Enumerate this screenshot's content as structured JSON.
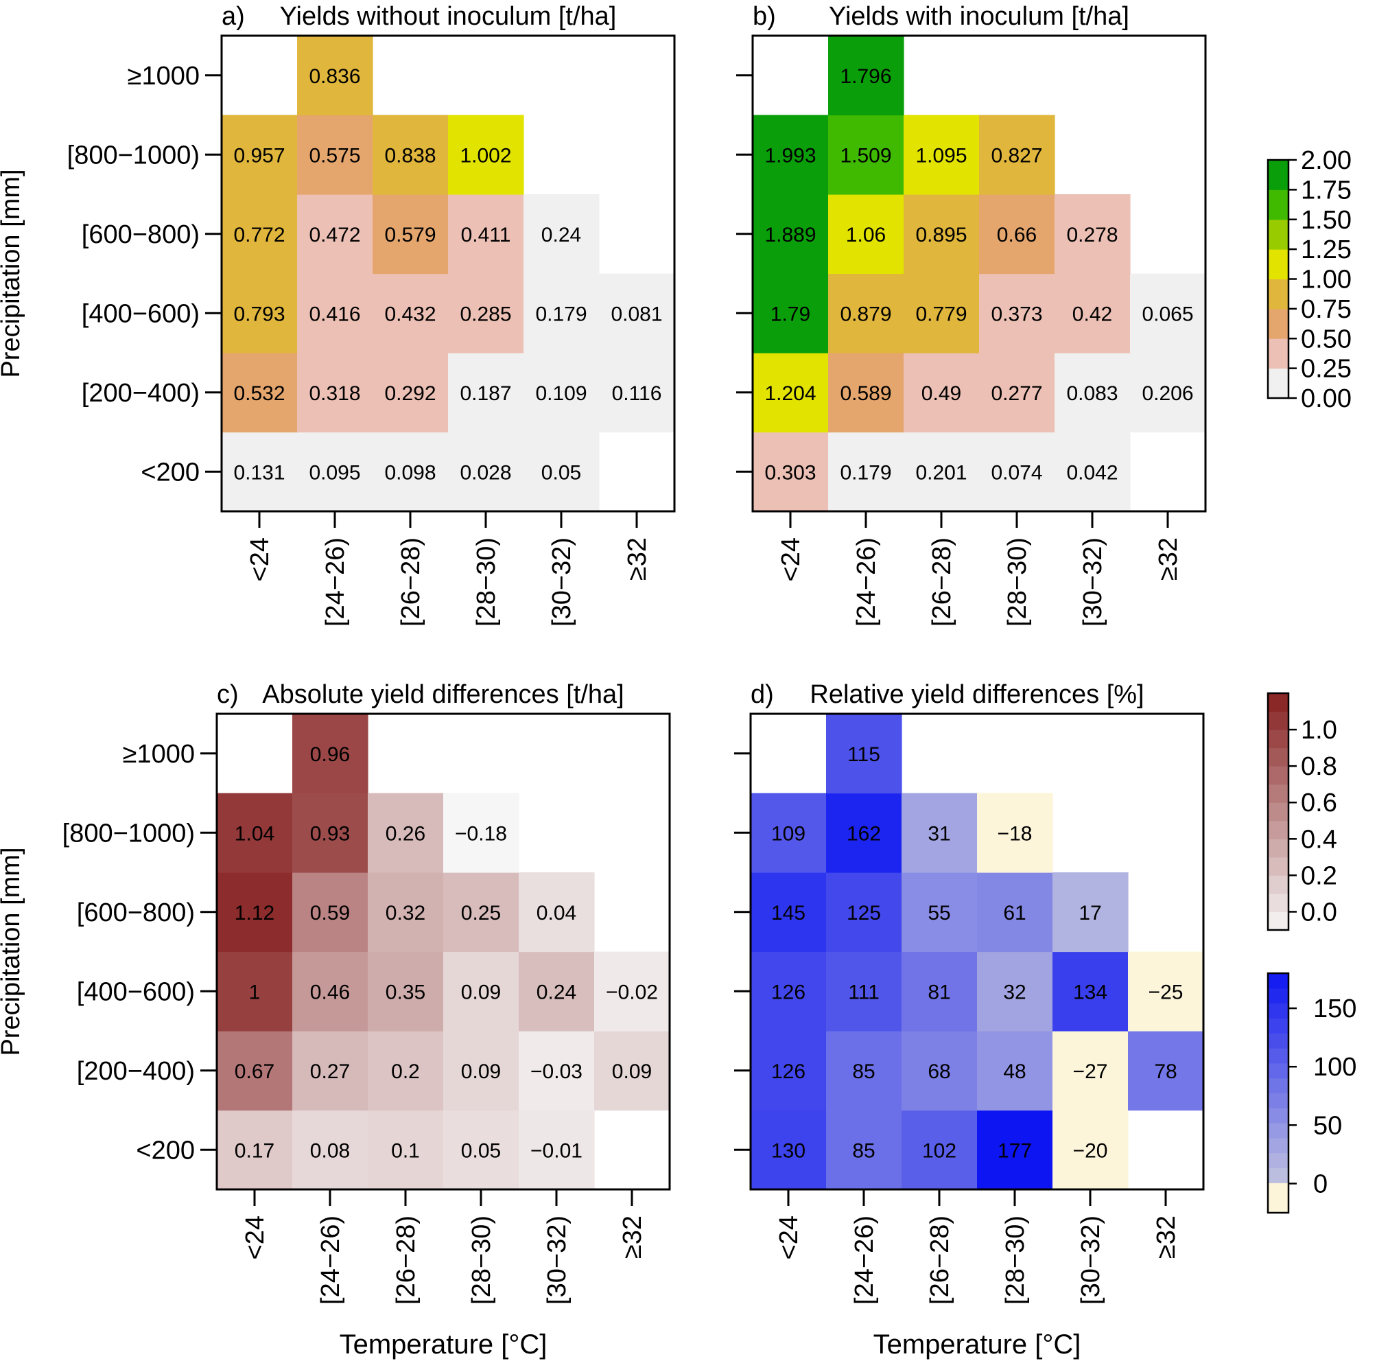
{
  "figure": {
    "x_axis_label": "Temperature [°C]",
    "y_axis_label": "Precipitation [mm]",
    "x_categories": [
      "<24",
      "[24−26)",
      "[26−28)",
      "[28−30)",
      "[30−32)",
      "≥32"
    ],
    "y_categories_bottom_to_top": [
      "<200",
      "[200−400)",
      "[400−600)",
      "[600−800)",
      "[800−1000)",
      "≥1000"
    ]
  },
  "chart_data": [
    {
      "id": "a",
      "type": "heatmap",
      "panel_label": "a)",
      "title": "Yields without inoculum [t/ha]",
      "xlabel": "",
      "ylabel": "Precipitation [mm]",
      "scale": "yield",
      "cells": [
        [
          "0.131",
          "0.095",
          "0.098",
          "0.028",
          "0.05",
          null
        ],
        [
          "0.532",
          "0.318",
          "0.292",
          "0.187",
          "0.109",
          "0.116"
        ],
        [
          "0.793",
          "0.416",
          "0.432",
          "0.285",
          "0.179",
          "0.081"
        ],
        [
          "0.772",
          "0.472",
          "0.579",
          "0.411",
          "0.24",
          null
        ],
        [
          "0.957",
          "0.575",
          "0.838",
          "1.002",
          null,
          null
        ],
        [
          null,
          "0.836",
          null,
          null,
          null,
          null
        ]
      ]
    },
    {
      "id": "b",
      "type": "heatmap",
      "panel_label": "b)",
      "title": "Yields with inoculum [t/ha]",
      "xlabel": "",
      "ylabel": "",
      "scale": "yield",
      "cells": [
        [
          "0.303",
          "0.179",
          "0.201",
          "0.074",
          "0.042",
          null
        ],
        [
          "1.204",
          "0.589",
          "0.49",
          "0.277",
          "0.083",
          "0.206"
        ],
        [
          "1.79",
          "0.879",
          "0.779",
          "0.373",
          "0.42",
          "0.065"
        ],
        [
          "1.889",
          "1.06",
          "0.895",
          "0.66",
          "0.278",
          null
        ],
        [
          "1.993",
          "1.509",
          "1.095",
          "0.827",
          null,
          null
        ],
        [
          null,
          "1.796",
          null,
          null,
          null,
          null
        ]
      ]
    },
    {
      "id": "c",
      "type": "heatmap",
      "panel_label": "c)",
      "title": "Absolute yield differences [t/ha]",
      "xlabel": "Temperature [°C]",
      "ylabel": "Precipitation [mm]",
      "scale": "absdiff",
      "cells": [
        [
          "0.17",
          "0.08",
          "0.1",
          "0.05",
          "−0.01",
          null
        ],
        [
          "0.67",
          "0.27",
          "0.2",
          "0.09",
          "−0.03",
          "0.09"
        ],
        [
          "1",
          "0.46",
          "0.35",
          "0.09",
          "0.24",
          "−0.02"
        ],
        [
          "1.12",
          "0.59",
          "0.32",
          "0.25",
          "0.04",
          null
        ],
        [
          "1.04",
          "0.93",
          "0.26",
          "−0.18",
          null,
          null
        ],
        [
          null,
          "0.96",
          null,
          null,
          null,
          null
        ]
      ]
    },
    {
      "id": "d",
      "type": "heatmap",
      "panel_label": "d)",
      "title": "Relative yield differences [%]",
      "xlabel": "Temperature [°C]",
      "ylabel": "",
      "scale": "reldiff",
      "cells": [
        [
          "130",
          "85",
          "102",
          "177",
          "−20",
          null
        ],
        [
          "126",
          "85",
          "68",
          "48",
          "−27",
          "78"
        ],
        [
          "126",
          "111",
          "81",
          "32",
          "134",
          "−25"
        ],
        [
          "145",
          "125",
          "55",
          "61",
          "17",
          null
        ],
        [
          "109",
          "162",
          "31",
          "−18",
          null,
          null
        ],
        [
          null,
          "115",
          null,
          null,
          null,
          null
        ]
      ]
    }
  ],
  "legends": {
    "yield": {
      "breaks": [
        0,
        0.25,
        0.5,
        0.75,
        1.0,
        1.25,
        1.5,
        1.75,
        2.0
      ],
      "labels": [
        "0.00",
        "0.25",
        "0.50",
        "0.75",
        "1.00",
        "1.25",
        "1.50",
        "1.75",
        "2.00"
      ],
      "colors": [
        "#f0f0f0",
        "#ecc0b4",
        "#e5a66e",
        "#e0b63c",
        "#e2e400",
        "#98cc00",
        "#3fba00",
        "#0a9f0a"
      ]
    },
    "absdiff": {
      "min": -0.1,
      "max": 1.2,
      "step": 0.1,
      "ticks": [
        0.0,
        0.2,
        0.4,
        0.6,
        0.8,
        1.0
      ],
      "labels": [
        "0.0",
        "0.2",
        "0.4",
        "0.6",
        "0.8",
        "1.0"
      ],
      "low_color": "#f6f6f6",
      "high_color": "#861f1f"
    },
    "reldiff": {
      "min": -25,
      "max": 180,
      "step": 12.5,
      "ticks": [
        0,
        50,
        100,
        150
      ],
      "labels": [
        "0",
        "50",
        "100",
        "150"
      ],
      "neg_color": "#fcf5da",
      "zero_color": "#dcdcdc",
      "high_color": "#0a12f2"
    }
  }
}
